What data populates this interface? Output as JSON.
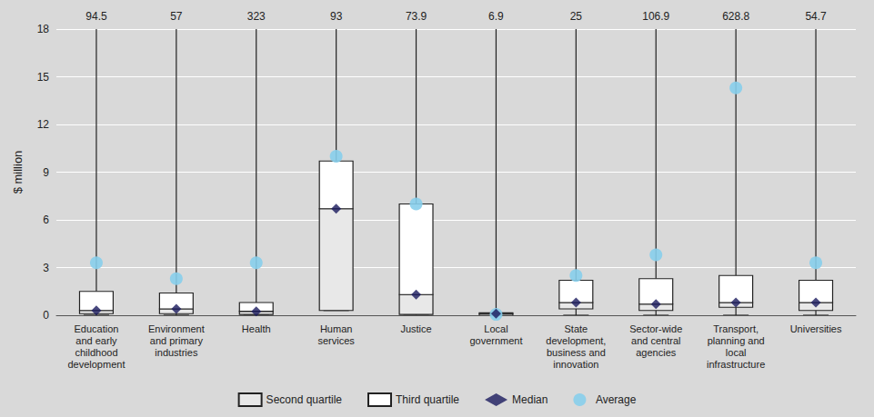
{
  "chart_data": {
    "type": "box",
    "categories": [
      "Education\nand early\nchildhood\ndevelopment",
      "Environment\nand primary\nindustries",
      "Health",
      "Human\nservices",
      "Justice",
      "Local\ngovernment",
      "State\ndevelopment,\nbusiness and\ninnovation",
      "Sector-wide\nand central\nagencies",
      "Transport,\nplanning and\nlocal\ninfrastructure",
      "Universities"
    ],
    "whisker_bottom": [
      0.0,
      0.0,
      0.0,
      0.3,
      0.0,
      0.0,
      0.0,
      0.0,
      0.0,
      0.0
    ],
    "q1": [
      0.1,
      0.1,
      0.05,
      0.3,
      0.05,
      0.0,
      0.4,
      0.3,
      0.5,
      0.3
    ],
    "median": [
      0.3,
      0.4,
      0.25,
      6.7,
      1.3,
      0.1,
      0.8,
      0.7,
      0.8,
      0.8
    ],
    "q3": [
      1.5,
      1.4,
      0.8,
      9.7,
      7.0,
      0.15,
      2.2,
      2.3,
      2.5,
      2.2
    ],
    "average": [
      3.3,
      2.3,
      3.3,
      10.0,
      7.0,
      0.05,
      2.5,
      3.8,
      14.3,
      3.3
    ],
    "max_labels": [
      "94.5",
      "57",
      "323",
      "93",
      "73.9",
      "6.9",
      "25",
      "106.9",
      "628.8",
      "54.7"
    ],
    "series": [
      {
        "name": "Second quartile",
        "color": "#e8e8e8",
        "marker": "rect"
      },
      {
        "name": "Third quartile",
        "color": "#ffffff",
        "marker": "rect"
      },
      {
        "name": "Median",
        "color": "#1a1a5e",
        "marker": "diamond"
      },
      {
        "name": "Average",
        "color": "#87ceeb",
        "marker": "circle"
      }
    ],
    "edge_color": "#222222",
    "whisker_color": "#222222",
    "background_color": "#d9d9d9",
    "grid_color": "#ffffff",
    "text_color": "#222222",
    "ylabel": "$ million",
    "ylim": [
      0,
      18
    ],
    "yticks": [
      0,
      3,
      6,
      9,
      12,
      15,
      18
    ],
    "grid": true,
    "legend": "bottom"
  }
}
